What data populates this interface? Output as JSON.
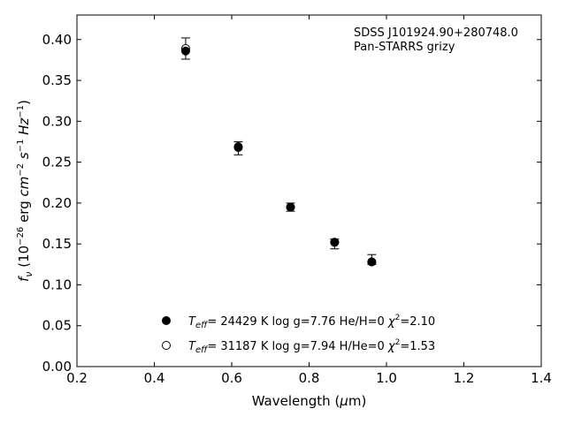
{
  "chart_data": {
    "type": "scatter",
    "annotation_lines": [
      "SDSS J101924.90+280748.0",
      "Pan-STARRS grizy"
    ],
    "xlabel": {
      "prefix": "Wavelength (",
      "greek": "μ",
      "suffix": "m)"
    },
    "ylabel": {
      "f": "f",
      "nu": "ν",
      "paren_open": " (10",
      "exp1": "−26",
      "erg": " erg ",
      "cm": "cm",
      "exp2": "−2",
      "s": " s",
      "exp3": "−1",
      "hz": " Hz",
      "exp4": "−1",
      "paren_close": ")"
    },
    "xlim": [
      0.2,
      1.4
    ],
    "ylim": [
      0.0,
      0.43
    ],
    "xticks": [
      0.2,
      0.4,
      0.6,
      0.8,
      1.0,
      1.2,
      1.4
    ],
    "xtick_labels": [
      "0.2",
      "0.4",
      "0.6",
      "0.8",
      "1.0",
      "1.2",
      "1.4"
    ],
    "yticks": [
      0.0,
      0.05,
      0.1,
      0.15,
      0.2,
      0.25,
      0.3,
      0.35,
      0.4
    ],
    "ytick_labels": [
      "0.00",
      "0.05",
      "0.10",
      "0.15",
      "0.20",
      "0.25",
      "0.30",
      "0.35",
      "0.40"
    ],
    "observed": {
      "x": [
        0.481,
        0.617,
        0.752,
        0.866,
        0.962
      ],
      "y": [
        0.389,
        0.267,
        0.195,
        0.15,
        0.131
      ],
      "err": [
        0.013,
        0.008,
        0.005,
        0.006,
        0.006
      ]
    },
    "series": [
      {
        "marker": "filled",
        "x": [
          0.481,
          0.617,
          0.752,
          0.866,
          0.962
        ],
        "y": [
          0.386,
          0.269,
          0.195,
          0.152,
          0.128
        ],
        "legend": {
          "T": "T",
          "sub": "eff",
          "text1": "= 24429 K  log g=7.76  He/H=0  ",
          "chi": "χ",
          "sup": "2",
          "text2": "=2.10"
        }
      },
      {
        "marker": "open",
        "x": [
          0.481,
          0.617,
          0.752,
          0.866,
          0.962
        ],
        "y": [
          0.389,
          0.268,
          0.195,
          0.152,
          0.128
        ],
        "legend": {
          "T": "T",
          "sub": "eff",
          "text1": "= 31187 K  log g=7.94  H/He=0  ",
          "chi": "χ",
          "sup": "2",
          "text2": "=1.53"
        }
      }
    ]
  }
}
